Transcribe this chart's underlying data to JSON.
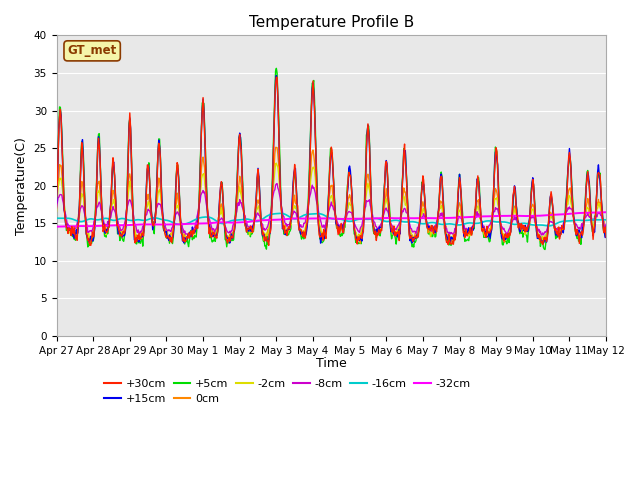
{
  "title": "Temperature Profile B",
  "xlabel": "Time",
  "ylabel": "Temperature(C)",
  "ylim": [
    0,
    40
  ],
  "plot_bg_color": "#e8e8e8",
  "xtick_labels": [
    "Apr 27",
    "Apr 28",
    "Apr 29",
    "Apr 30",
    "May 1",
    "May 2",
    "May 3",
    "May 4",
    "May 5",
    "May 6",
    "May 7",
    "May 8",
    "May 9",
    "May 10",
    "May 11",
    "May 12"
  ],
  "series_colors": {
    "+30cm": "#ff2200",
    "+15cm": "#0000ee",
    "+5cm": "#00dd00",
    "0cm": "#ff8800",
    "-2cm": "#dddd00",
    "-8cm": "#cc00cc",
    "-16cm": "#00cccc",
    "-32cm": "#ff00ff"
  },
  "legend_label": "GT_met",
  "n_points": 721,
  "seed": 7
}
